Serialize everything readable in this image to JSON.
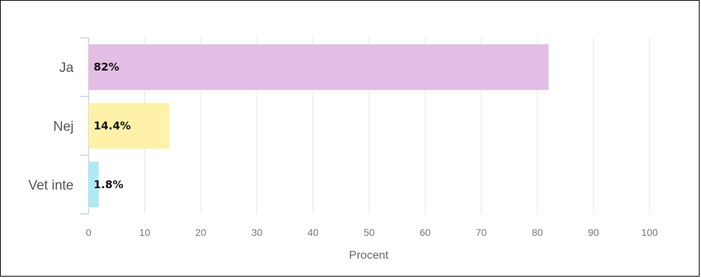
{
  "chart_data": {
    "type": "bar",
    "orientation": "horizontal",
    "categories": [
      "Ja",
      "Nej",
      "Vet inte"
    ],
    "values": [
      82,
      14.4,
      1.8
    ],
    "value_labels": [
      "82%",
      "14.4%",
      "1.8%"
    ],
    "colors": [
      "#e2bde4",
      "#fff2a8",
      "#aeeaf2"
    ],
    "xlabel": "Procent",
    "xlim": [
      0,
      100
    ],
    "xticks": [
      0,
      10,
      20,
      30,
      40,
      50,
      60,
      70,
      80,
      90,
      100
    ],
    "grid": true
  }
}
